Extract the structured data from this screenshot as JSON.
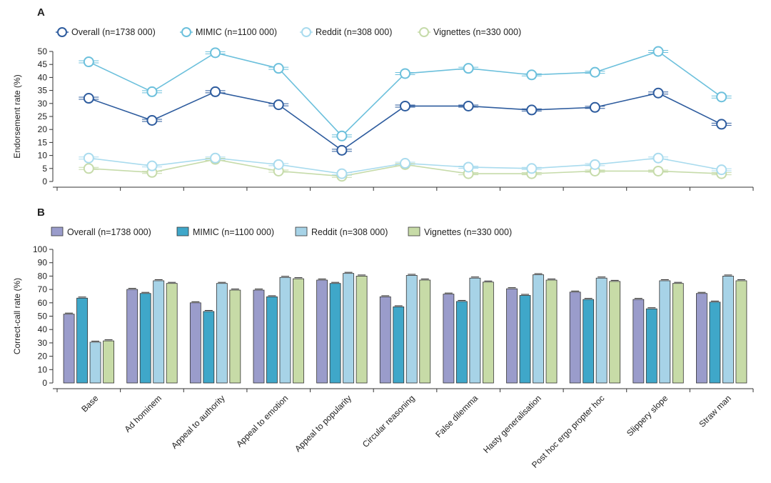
{
  "categories": [
    "Base",
    "Ad hominem",
    "Appeal to authority",
    "Appeal to emotion",
    "Appeal to popularity",
    "Circular reasoning",
    "False dilemma",
    "Hasty generalisation",
    "Post hoc ergo propter hoc",
    "Slippery slope",
    "Straw man"
  ],
  "chart_data": [
    {
      "panel": "A",
      "type": "line",
      "ylabel": "Endorsement rate (%)",
      "ylim": [
        0,
        50
      ],
      "yticks": [
        0,
        5,
        10,
        15,
        20,
        25,
        30,
        35,
        40,
        45,
        50
      ],
      "legend_position": "top-left",
      "series": [
        {
          "name": "Overall (n=1738 000)",
          "color": "#2e5c9e",
          "fill": "#ffffff",
          "values": [
            32,
            23.5,
            34.5,
            29.5,
            12,
            29,
            29,
            27.5,
            28.5,
            34,
            22
          ]
        },
        {
          "name": "MIMIC (n=1100 000)",
          "color": "#6cc0dc",
          "fill": "#ffffff",
          "values": [
            46,
            34.5,
            49.5,
            43.5,
            17.5,
            41.5,
            43.5,
            41,
            42,
            50,
            32.5
          ]
        },
        {
          "name": "Reddit (n=308 000)",
          "color": "#a9dbee",
          "fill": "#ffffff",
          "values": [
            9,
            6,
            9,
            6.5,
            3,
            7,
            5.5,
            5,
            6.5,
            9,
            4.5
          ]
        },
        {
          "name": "Vignettes (n=330 000)",
          "color": "#c6dbaa",
          "fill": "#ffffff",
          "values": [
            5,
            3.5,
            8.5,
            4,
            2,
            6.5,
            3,
            3,
            4,
            4,
            3
          ]
        }
      ]
    },
    {
      "panel": "B",
      "type": "bar",
      "ylabel": "Correct-call rate (%)",
      "ylim": [
        0,
        100
      ],
      "yticks": [
        0,
        10,
        20,
        30,
        40,
        50,
        60,
        70,
        80,
        90,
        100
      ],
      "legend_position": "top-left",
      "series": [
        {
          "name": "Overall (n=1738 000)",
          "color": "#9a9ccb",
          "values": [
            51.5,
            70,
            60,
            69.5,
            77,
            64.5,
            66.5,
            70.5,
            68,
            62.5,
            67
          ]
        },
        {
          "name": "MIMIC (n=1100 000)",
          "color": "#3fa7c9",
          "values": [
            63.5,
            67,
            53.5,
            64.5,
            74.5,
            57,
            61,
            65.5,
            62.5,
            55.5,
            60.5
          ]
        },
        {
          "name": "Reddit (n=308 000)",
          "color": "#a7d3e7",
          "values": [
            30.5,
            76.5,
            74.5,
            79,
            82,
            80.5,
            78.5,
            81,
            78.5,
            76.5,
            80
          ]
        },
        {
          "name": "Vignettes (n=330 000)",
          "color": "#c7dba7",
          "values": [
            31.5,
            74.5,
            69.5,
            78,
            80,
            77,
            75.5,
            77,
            76,
            74.5,
            76.5
          ]
        }
      ]
    }
  ]
}
